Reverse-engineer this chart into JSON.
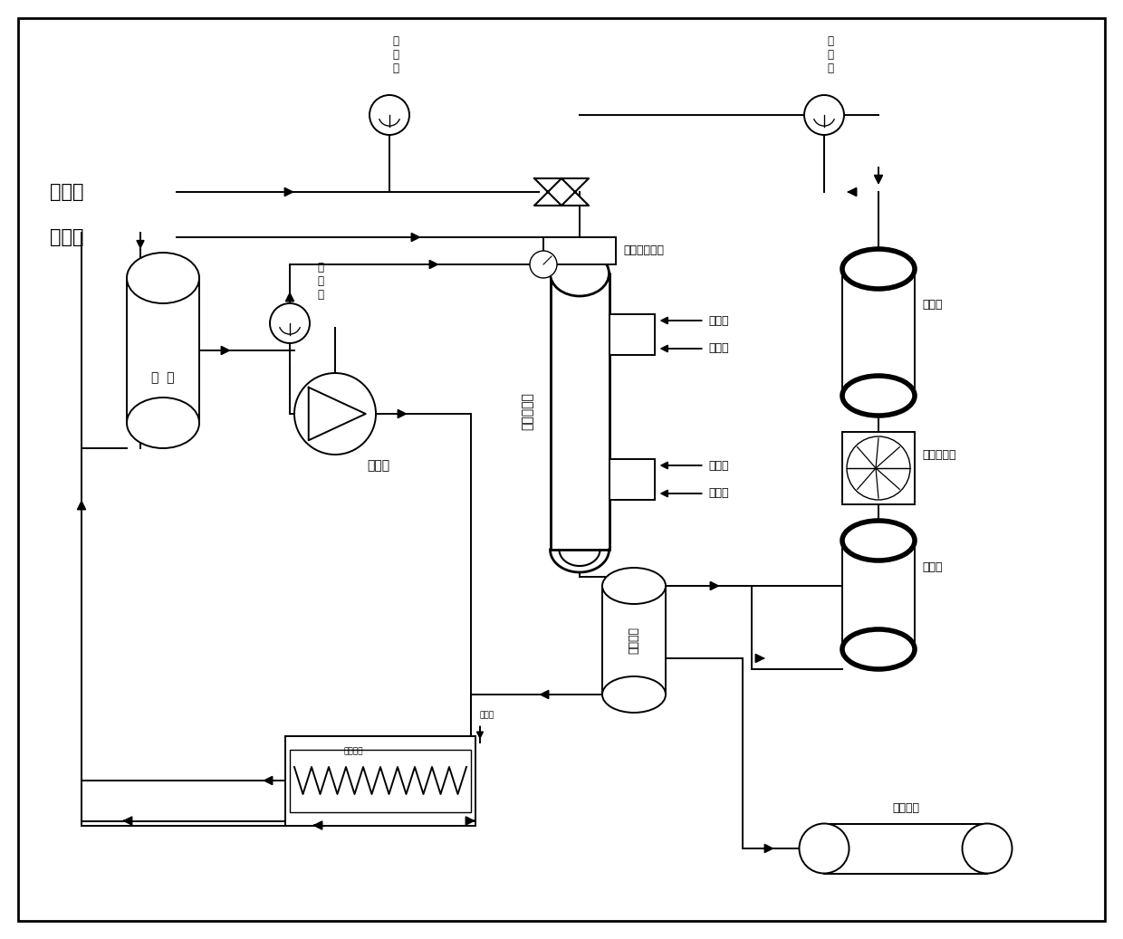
{
  "labels": {
    "h2_in": "氢气进",
    "n2_in": "氮气进",
    "flowmeter": "流量计",
    "micromixer": "微通道混合器",
    "tube_reactor": "管式反应器",
    "hot_oil_out": "热油出",
    "cold_oil_out": "冷油出",
    "hot_oil_in": "热油进",
    "cold_oil_in": "冷油进",
    "buffer_tank": "缓冲罐",
    "compressor": "氮气压缩机",
    "raw_material": "原  料",
    "feed_pump": "原料泵",
    "gas_liquid_sep": "气液分离",
    "product_collect": "产品收集",
    "heater_label1": "天平衡时",
    "heater_label2": "关闭阀",
    "flowmeter_label": "流\n量\n计"
  },
  "bg": "#ffffff",
  "lc": "#000000"
}
